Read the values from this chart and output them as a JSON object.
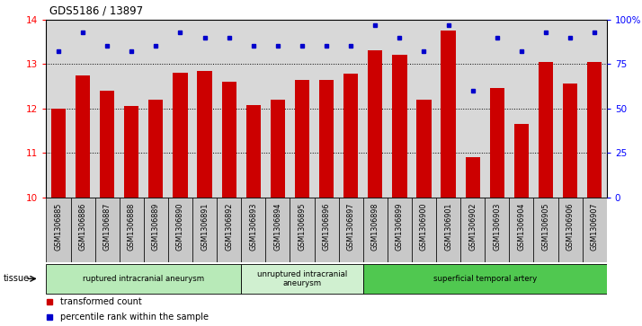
{
  "title": "GDS5186 / 13897",
  "samples": [
    "GSM1306885",
    "GSM1306886",
    "GSM1306887",
    "GSM1306888",
    "GSM1306889",
    "GSM1306890",
    "GSM1306891",
    "GSM1306892",
    "GSM1306893",
    "GSM1306894",
    "GSM1306895",
    "GSM1306896",
    "GSM1306897",
    "GSM1306898",
    "GSM1306899",
    "GSM1306900",
    "GSM1306901",
    "GSM1306902",
    "GSM1306903",
    "GSM1306904",
    "GSM1306905",
    "GSM1306906",
    "GSM1306907"
  ],
  "transformed_count": [
    12.0,
    12.75,
    12.4,
    12.05,
    12.2,
    12.8,
    12.85,
    12.6,
    12.08,
    12.2,
    12.65,
    12.65,
    12.78,
    13.3,
    13.2,
    12.2,
    13.75,
    10.9,
    12.45,
    11.65,
    13.05,
    12.55,
    13.05
  ],
  "percentile_rank": [
    82,
    93,
    85,
    82,
    85,
    93,
    90,
    90,
    85,
    85,
    85,
    85,
    85,
    97,
    90,
    82,
    97,
    60,
    90,
    82,
    93,
    90,
    93
  ],
  "ylim_left": [
    10,
    14
  ],
  "ylim_right": [
    0,
    100
  ],
  "yticks_left": [
    10,
    11,
    12,
    13,
    14
  ],
  "yticks_right": [
    0,
    25,
    50,
    75,
    100
  ],
  "ytick_labels_right": [
    "0",
    "25",
    "50",
    "75",
    "100%"
  ],
  "bar_color": "#cc0000",
  "dot_color": "#0000cc",
  "plot_bg_color": "#d8d8d8",
  "tick_bg_color": "#c8c8c8",
  "tissue_colors": [
    "#b8eab8",
    "#d0f0d0",
    "#50c850"
  ],
  "tissue_groups": [
    {
      "label": "ruptured intracranial aneurysm",
      "start": 0,
      "end": 8,
      "color": "#b8eab8"
    },
    {
      "label": "unruptured intracranial\naneurysm",
      "start": 8,
      "end": 13,
      "color": "#d0f0d0"
    },
    {
      "label": "superficial temporal artery",
      "start": 13,
      "end": 23,
      "color": "#50c850"
    }
  ],
  "tissue_label": "tissue",
  "legend_items": [
    {
      "label": "transformed count",
      "color": "#cc0000"
    },
    {
      "label": "percentile rank within the sample",
      "color": "#0000cc"
    }
  ]
}
